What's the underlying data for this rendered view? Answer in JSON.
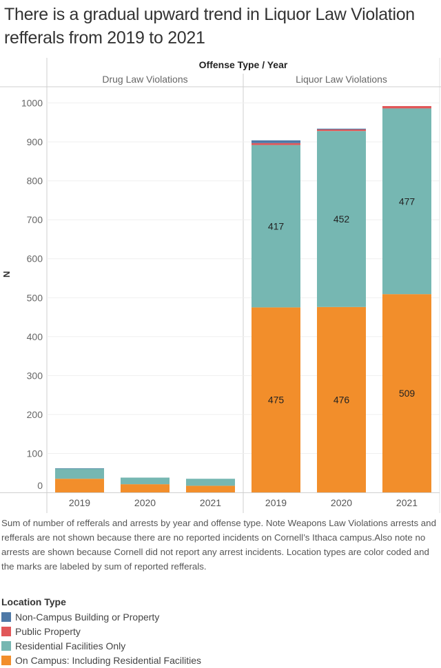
{
  "title": "There is a gradual upward trend in Liquor Law Violation refferals from 2019 to 2021",
  "header": {
    "top": "Offense Type / Year"
  },
  "caption": "Sum of number of refferals and arrests by year and offense type. Note Weapons Law Violations arrests and refferals are not shown because there are no reported incidents on Cornell’s Ithaca campus.Also note no arrests are shown because Cornell did not report any arrest incidents. Location types are color coded and the marks are labeled by sum of reported refferals.",
  "legend": {
    "title": "Location Type",
    "items": [
      {
        "label": "Non-Campus Building or Property",
        "color": "#4e79a7"
      },
      {
        "label": "Public Property",
        "color": "#e15759"
      },
      {
        "label": "Residential Facilities Only",
        "color": "#76b7b2"
      },
      {
        "label": "On Campus: Including Residential Facilities",
        "color": "#f28e2b"
      }
    ]
  },
  "chart_data": {
    "type": "bar",
    "stacked": true,
    "title": "There is a gradual upward trend in Liquor Law Violation refferals from 2019 to 2021",
    "xlabel": "Offense Type / Year",
    "ylabel": "N",
    "ylim": [
      0,
      1000
    ],
    "yticks": [
      0,
      100,
      200,
      300,
      400,
      500,
      600,
      700,
      800,
      900,
      1000
    ],
    "grid": true,
    "legend_position": "bottom-left",
    "panels": [
      "Drug Law Violations",
      "Liquor Law Violations"
    ],
    "categories": [
      "2019",
      "2020",
      "2021"
    ],
    "series": [
      {
        "name": "On Campus: Including Residential Facilities",
        "color": "#f28e2b",
        "values": {
          "Drug Law Violations": [
            35,
            21,
            17
          ],
          "Liquor Law Violations": [
            475,
            476,
            509
          ]
        },
        "labels": {
          "Drug Law Violations": [
            null,
            null,
            null
          ],
          "Liquor Law Violations": [
            "475",
            "476",
            "509"
          ]
        }
      },
      {
        "name": "Residential Facilities Only",
        "color": "#76b7b2",
        "values": {
          "Drug Law Violations": [
            26,
            17,
            18
          ],
          "Liquor Law Violations": [
            417,
            452,
            477
          ]
        },
        "labels": {
          "Drug Law Violations": [
            null,
            null,
            null
          ],
          "Liquor Law Violations": [
            "417",
            "452",
            "477"
          ]
        }
      },
      {
        "name": "Public Property",
        "color": "#e15759",
        "values": {
          "Drug Law Violations": [
            0,
            0,
            0
          ],
          "Liquor Law Violations": [
            5,
            4,
            6
          ]
        },
        "labels": {
          "Drug Law Violations": [
            null,
            null,
            null
          ],
          "Liquor Law Violations": [
            null,
            null,
            null
          ]
        }
      },
      {
        "name": "Non-Campus Building or Property",
        "color": "#4e79a7",
        "values": {
          "Drug Law Violations": [
            1,
            0,
            0
          ],
          "Liquor Law Violations": [
            7,
            2,
            0
          ]
        },
        "labels": {
          "Drug Law Violations": [
            null,
            null,
            null
          ],
          "Liquor Law Violations": [
            null,
            null,
            null
          ]
        }
      }
    ]
  }
}
